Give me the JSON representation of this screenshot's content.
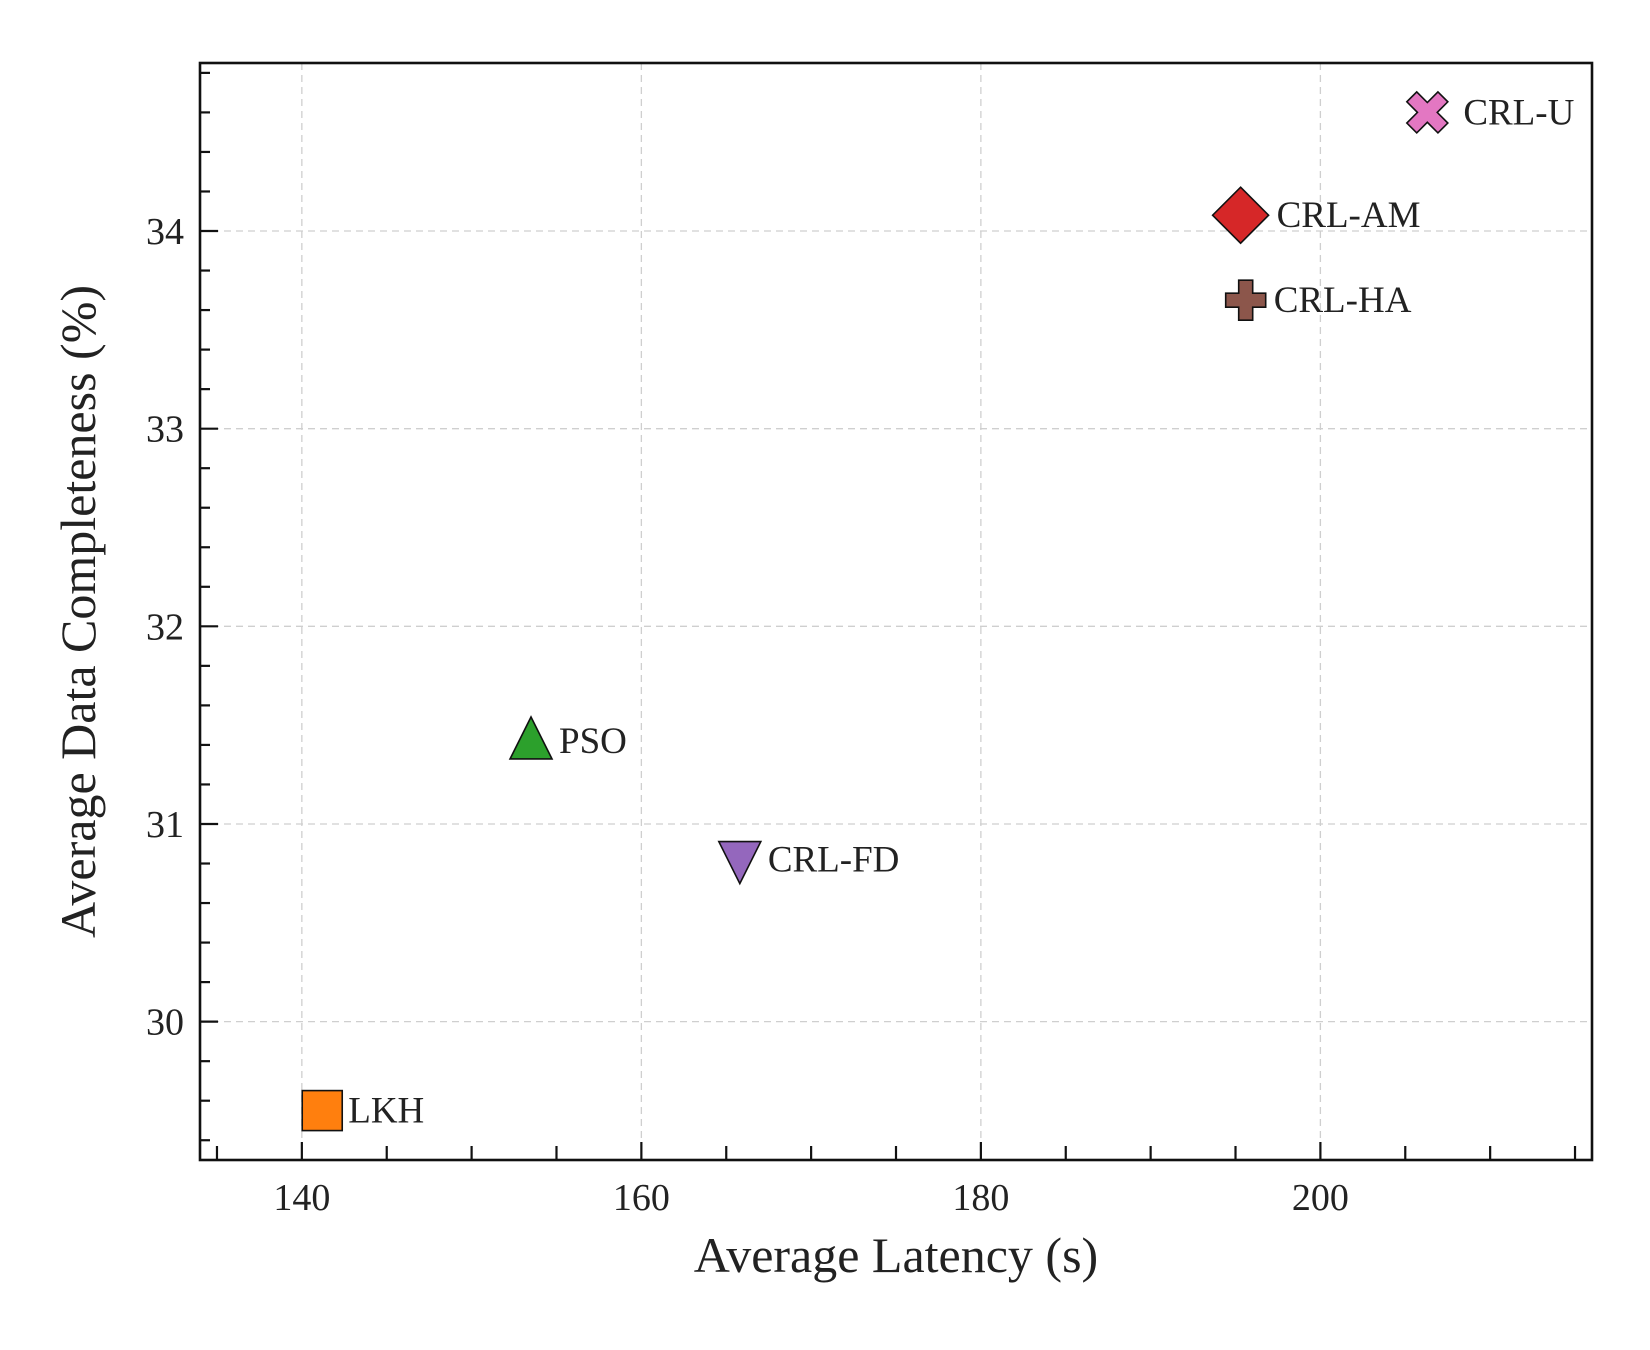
{
  "chart_data": {
    "type": "scatter",
    "title": "",
    "xlabel": "Average Latency (s)",
    "ylabel": "Average Data Completeness (%)",
    "xlim": [
      134,
      216
    ],
    "ylim": [
      29.3,
      34.85
    ],
    "xticks": [
      140,
      160,
      180,
      200
    ],
    "yticks": [
      30,
      31,
      32,
      33,
      34
    ],
    "x_minor_step": 5,
    "y_minor_step": 0.2,
    "grid": true,
    "points": [
      {
        "label": "LKH",
        "x": 141.2,
        "y": 29.55,
        "marker": "square",
        "color": "#ff7f0e"
      },
      {
        "label": "PSO",
        "x": 153.5,
        "y": 31.42,
        "marker": "triangle-up",
        "color": "#2ca02c"
      },
      {
        "label": "CRL-FD",
        "x": 165.8,
        "y": 30.82,
        "marker": "triangle-down",
        "color": "#9467bd"
      },
      {
        "label": "CRL-AM",
        "x": 195.3,
        "y": 34.08,
        "marker": "diamond",
        "color": "#d62728"
      },
      {
        "label": "CRL-HA",
        "x": 195.6,
        "y": 33.65,
        "marker": "plus",
        "color": "#8c564b"
      },
      {
        "label": "CRL-U",
        "x": 206.3,
        "y": 34.6,
        "marker": "x",
        "color": "#e377c2"
      }
    ]
  }
}
